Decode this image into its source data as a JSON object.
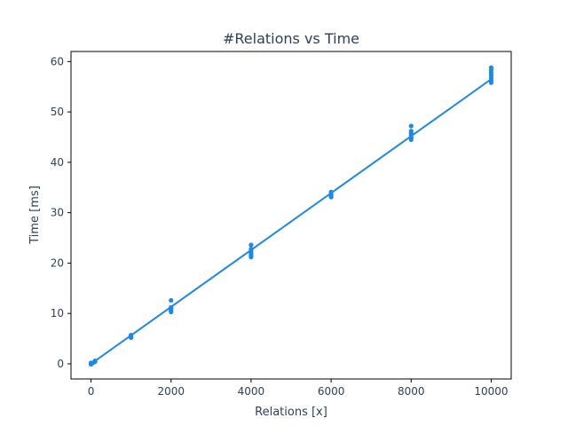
{
  "chart_data": {
    "type": "scatter",
    "title": "#Relations vs Time",
    "xlabel": "Relations [x]",
    "ylabel": "Time [ms]",
    "xlim": [
      -500,
      10500
    ],
    "ylim": [
      -3,
      62
    ],
    "xticks": [
      0,
      2000,
      4000,
      6000,
      8000,
      10000
    ],
    "yticks": [
      0,
      10,
      20,
      30,
      40,
      50,
      60
    ],
    "grid": false,
    "colors": {
      "series": "#1e88e5",
      "text": "#2e3f55",
      "axis": "#000000"
    },
    "series": [
      {
        "type": "scatter",
        "points": [
          [
            0,
            0.0
          ],
          [
            0,
            0.1
          ],
          [
            0,
            -0.1
          ],
          [
            0,
            0.2
          ],
          [
            10,
            0.05
          ],
          [
            20,
            0.1
          ],
          [
            50,
            0.2
          ],
          [
            100,
            0.4
          ],
          [
            100,
            0.5
          ],
          [
            100,
            0.6
          ],
          [
            1000,
            5.2
          ],
          [
            1000,
            5.4
          ],
          [
            1000,
            5.6
          ],
          [
            1000,
            5.7
          ],
          [
            2000,
            10.3
          ],
          [
            2000,
            10.6
          ],
          [
            2000,
            10.9
          ],
          [
            2000,
            11.2
          ],
          [
            2000,
            12.6
          ],
          [
            4000,
            21.2
          ],
          [
            4000,
            21.6
          ],
          [
            4000,
            22.0
          ],
          [
            4000,
            22.4
          ],
          [
            4000,
            22.8
          ],
          [
            4000,
            23.6
          ],
          [
            6000,
            33.1
          ],
          [
            6000,
            33.4
          ],
          [
            6000,
            33.7
          ],
          [
            6000,
            34.1
          ],
          [
            8000,
            44.5
          ],
          [
            8000,
            44.9
          ],
          [
            8000,
            45.4
          ],
          [
            8000,
            45.8
          ],
          [
            8000,
            46.2
          ],
          [
            8000,
            47.2
          ],
          [
            10000,
            55.8
          ],
          [
            10000,
            56.3
          ],
          [
            10000,
            56.8
          ],
          [
            10000,
            57.3
          ],
          [
            10000,
            57.8
          ],
          [
            10000,
            58.3
          ],
          [
            10000,
            58.8
          ]
        ]
      },
      {
        "type": "line",
        "points": [
          [
            0,
            0.0
          ],
          [
            10000,
            56.5
          ]
        ]
      }
    ]
  }
}
